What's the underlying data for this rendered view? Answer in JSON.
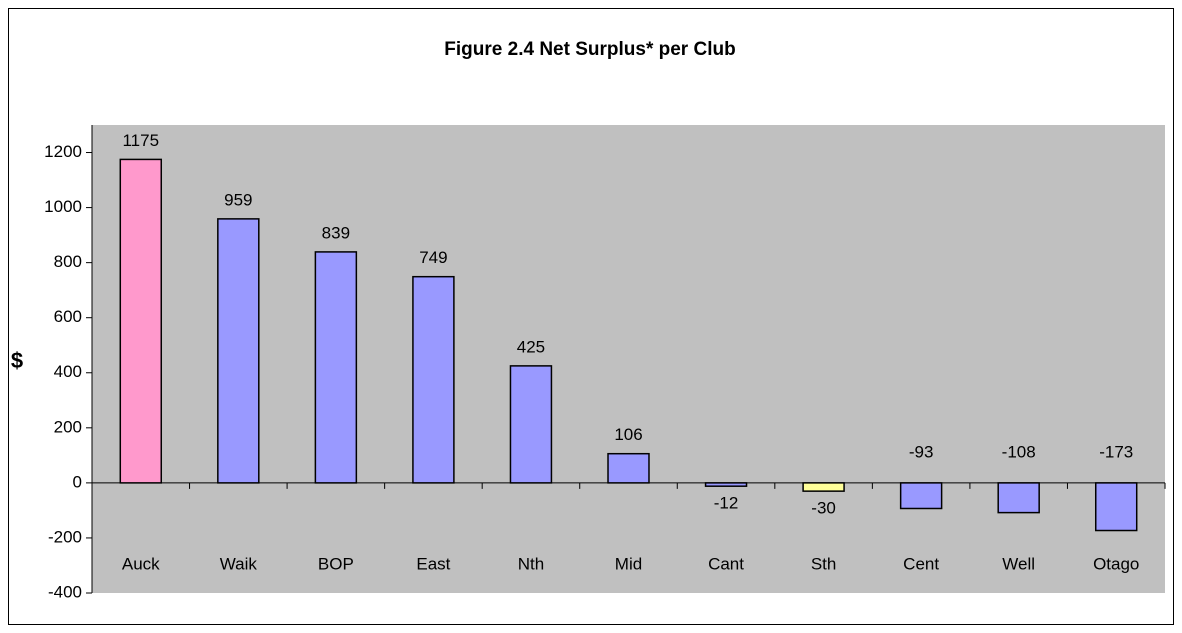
{
  "chart_data": {
    "type": "bar",
    "title": "Figure 2.4 Net Surplus* per Club",
    "y_label": "$",
    "categories": [
      "Auck",
      "Waik",
      "BOP",
      "East",
      "Nth",
      "Mid",
      "Cant",
      "Sth",
      "Cent",
      "Well",
      "Otago"
    ],
    "values": [
      1175,
      959,
      839,
      749,
      425,
      106,
      -12,
      -30,
      -93,
      -108,
      -173
    ],
    "colors": [
      "#ff99cc",
      "#9999ff",
      "#9999ff",
      "#9999ff",
      "#9999ff",
      "#9999ff",
      "#9999ff",
      "#ffff99",
      "#9999ff",
      "#9999ff",
      "#9999ff"
    ],
    "ylim": [
      -400,
      1300
    ],
    "yticks": [
      -400,
      -200,
      0,
      200,
      400,
      600,
      800,
      1000,
      1200
    ],
    "grid": false
  }
}
